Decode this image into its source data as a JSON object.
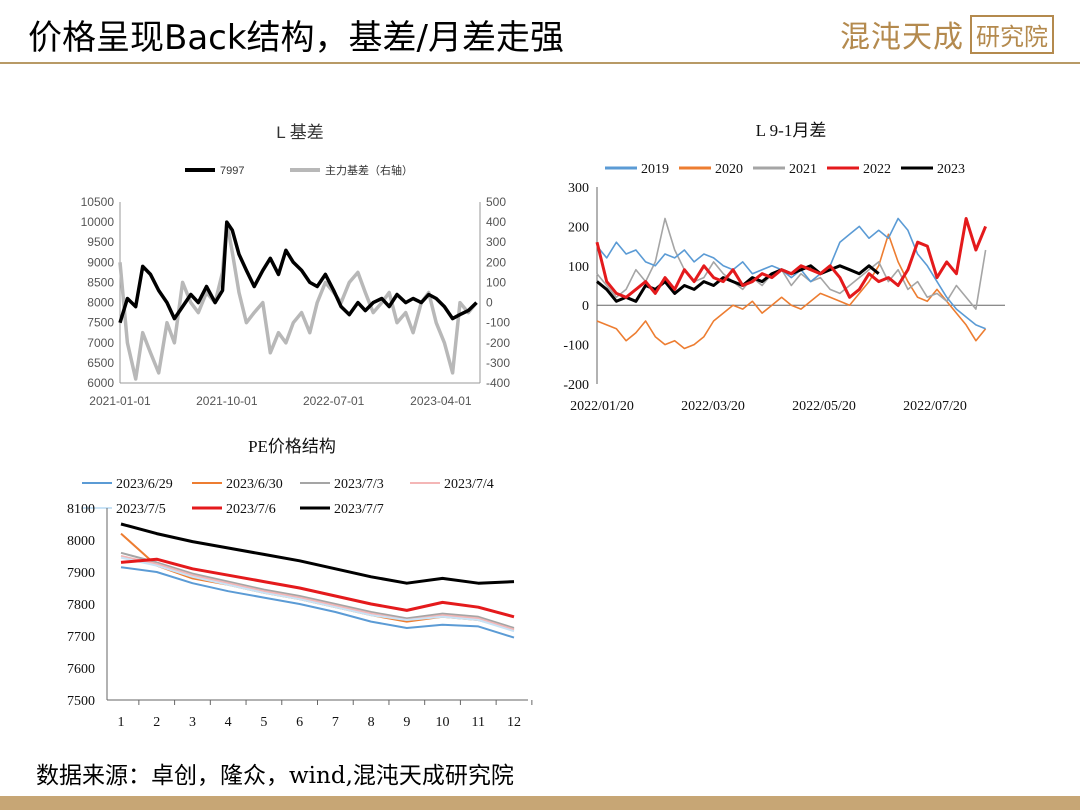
{
  "header": {
    "title": "价格呈现Back结构，基差/月差走强",
    "logo_main": "混沌天成",
    "logo_box": "研究院"
  },
  "footer": {
    "source": "数据来源：卓创，隆众，wind,混沌天成研究院"
  },
  "colors": {
    "accent": "#b89a66"
  },
  "chart_data": [
    {
      "id": "basis",
      "type": "line",
      "title": "L 基差",
      "legend": [
        "7997",
        "主力基差（右轴）"
      ],
      "x_ticks": [
        "2021-01-01",
        "2021-10-01",
        "2022-07-01",
        "2023-04-01"
      ],
      "y_left": {
        "ticks": [
          6000,
          6500,
          7000,
          7500,
          8000,
          8500,
          9000,
          9500,
          10000,
          10500
        ],
        "range": [
          6000,
          10500
        ]
      },
      "y_right": {
        "ticks": [
          -400,
          -300,
          -200,
          -100,
          0,
          100,
          200,
          300,
          400,
          500
        ],
        "range": [
          -400,
          500
        ]
      },
      "series": [
        {
          "name": "7997",
          "color": "#000000",
          "axis": "left",
          "x": [
            "2021-01-01",
            "2021-01-20",
            "2021-02-10",
            "2021-02-28",
            "2021-03-20",
            "2021-04-10",
            "2021-05-01",
            "2021-05-20",
            "2021-06-10",
            "2021-07-01",
            "2021-07-20",
            "2021-08-10",
            "2021-09-01",
            "2021-09-20",
            "2021-10-01",
            "2021-10-15",
            "2021-11-01",
            "2021-11-20",
            "2021-12-10",
            "2022-01-01",
            "2022-01-20",
            "2022-02-10",
            "2022-03-01",
            "2022-03-20",
            "2022-04-10",
            "2022-05-01",
            "2022-05-20",
            "2022-06-10",
            "2022-07-01",
            "2022-07-20",
            "2022-08-10",
            "2022-09-01",
            "2022-09-20",
            "2022-10-10",
            "2022-11-01",
            "2022-11-20",
            "2022-12-10",
            "2023-01-01",
            "2023-01-20",
            "2023-02-10",
            "2023-03-01",
            "2023-03-20",
            "2023-04-10",
            "2023-05-01",
            "2023-05-20",
            "2023-06-10",
            "2023-07-01"
          ],
          "values": [
            7500,
            8100,
            7900,
            8900,
            8700,
            8300,
            8000,
            7600,
            7900,
            8200,
            8000,
            8400,
            8000,
            8300,
            10000,
            9800,
            9200,
            8800,
            8400,
            8800,
            9100,
            8700,
            9300,
            9000,
            8800,
            8500,
            8400,
            8700,
            8300,
            7900,
            7700,
            8000,
            7800,
            8000,
            8100,
            7900,
            8200,
            8000,
            8100,
            8000,
            8200,
            8100,
            7900,
            7600,
            7700,
            7800,
            8000
          ]
        },
        {
          "name": "主力基差（右轴）",
          "color": "#b8b8b8",
          "axis": "right",
          "x": [
            "2021-01-01",
            "2021-01-20",
            "2021-02-10",
            "2021-02-28",
            "2021-03-20",
            "2021-04-10",
            "2021-05-01",
            "2021-05-20",
            "2021-06-10",
            "2021-07-01",
            "2021-07-20",
            "2021-08-10",
            "2021-09-01",
            "2021-09-20",
            "2021-10-01",
            "2021-10-15",
            "2021-11-01",
            "2021-11-20",
            "2021-12-10",
            "2022-01-01",
            "2022-01-20",
            "2022-02-10",
            "2022-03-01",
            "2022-03-20",
            "2022-04-10",
            "2022-05-01",
            "2022-05-20",
            "2022-06-10",
            "2022-07-01",
            "2022-07-20",
            "2022-08-10",
            "2022-09-01",
            "2022-09-20",
            "2022-10-10",
            "2022-11-01",
            "2022-11-20",
            "2022-12-10",
            "2023-01-01",
            "2023-01-20",
            "2023-02-10",
            "2023-03-01",
            "2023-03-20",
            "2023-04-10",
            "2023-05-01",
            "2023-05-20",
            "2023-06-10",
            "2023-07-01"
          ],
          "values": [
            200,
            -200,
            -380,
            -150,
            -250,
            -350,
            -100,
            -200,
            100,
            0,
            -50,
            50,
            0,
            150,
            400,
            250,
            50,
            -100,
            -50,
            0,
            -250,
            -150,
            -200,
            -100,
            -50,
            -150,
            0,
            100,
            50,
            0,
            100,
            150,
            50,
            -50,
            0,
            50,
            -100,
            -50,
            -150,
            0,
            50,
            -100,
            -200,
            -350,
            0,
            -50,
            0
          ]
        }
      ]
    },
    {
      "id": "spread",
      "type": "line",
      "title": "L 9-1月差",
      "legend": [
        "2019",
        "2020",
        "2021",
        "2022",
        "2023"
      ],
      "x_ticks": [
        "2022/01/20",
        "2022/03/20",
        "2022/05/20",
        "2022/07/20"
      ],
      "y": {
        "ticks": [
          -200,
          -100,
          0,
          100,
          200,
          300
        ],
        "range": [
          -200,
          300
        ]
      },
      "series": [
        {
          "name": "2019",
          "color": "#5b9bd5",
          "x": [
            0,
            10,
            20,
            30,
            40,
            50,
            60,
            70,
            80,
            90,
            100,
            110,
            120,
            130,
            140,
            150,
            160,
            170,
            180,
            190,
            200,
            210,
            220,
            230,
            240,
            250,
            260,
            270,
            280,
            290,
            300,
            310,
            320,
            330,
            340,
            350,
            360,
            370,
            380,
            390,
            400
          ],
          "values": [
            150,
            120,
            160,
            130,
            140,
            110,
            100,
            130,
            120,
            140,
            110,
            130,
            120,
            100,
            90,
            110,
            80,
            90,
            100,
            90,
            70,
            90,
            60,
            80,
            100,
            160,
            180,
            200,
            170,
            190,
            170,
            220,
            190,
            130,
            100,
            60,
            20,
            -10,
            -30,
            -50,
            -60
          ]
        },
        {
          "name": "2020",
          "color": "#ed7d31",
          "x": [
            0,
            10,
            20,
            30,
            40,
            50,
            60,
            70,
            80,
            90,
            100,
            110,
            120,
            130,
            140,
            150,
            160,
            170,
            180,
            190,
            200,
            210,
            220,
            230,
            240,
            250,
            260,
            270,
            280,
            290,
            300,
            310,
            320,
            330,
            340,
            350,
            360,
            370,
            380,
            390,
            400
          ],
          "values": [
            -40,
            -50,
            -60,
            -90,
            -70,
            -40,
            -80,
            -100,
            -90,
            -110,
            -100,
            -80,
            -40,
            -20,
            0,
            -10,
            10,
            -20,
            0,
            20,
            0,
            -10,
            10,
            30,
            20,
            10,
            0,
            30,
            60,
            100,
            180,
            110,
            60,
            20,
            10,
            40,
            10,
            -20,
            -50,
            -90,
            -60
          ]
        },
        {
          "name": "2021",
          "color": "#a5a5a5",
          "x": [
            0,
            10,
            20,
            30,
            40,
            50,
            60,
            70,
            80,
            90,
            100,
            110,
            120,
            130,
            140,
            150,
            160,
            170,
            180,
            190,
            200,
            210,
            220,
            230,
            240,
            250,
            260,
            270,
            280,
            290,
            300,
            310,
            320,
            330,
            340,
            350,
            360,
            370,
            380,
            390,
            400
          ],
          "values": [
            80,
            50,
            20,
            40,
            90,
            60,
            110,
            220,
            140,
            90,
            60,
            70,
            110,
            80,
            60,
            40,
            70,
            50,
            80,
            90,
            50,
            80,
            60,
            70,
            40,
            30,
            50,
            70,
            90,
            110,
            60,
            90,
            40,
            60,
            20,
            30,
            10,
            50,
            20,
            -10,
            140
          ]
        },
        {
          "name": "2022",
          "color": "#e41a1c",
          "x": [
            0,
            10,
            20,
            30,
            40,
            50,
            60,
            70,
            80,
            90,
            100,
            110,
            120,
            130,
            140,
            150,
            160,
            170,
            180,
            190,
            200,
            210,
            220,
            230,
            240,
            250,
            260,
            270,
            280,
            290,
            300,
            310,
            320,
            330,
            340,
            350,
            360,
            370,
            380,
            390,
            400
          ],
          "values": [
            160,
            60,
            30,
            20,
            40,
            60,
            30,
            70,
            40,
            90,
            60,
            100,
            70,
            60,
            90,
            50,
            60,
            80,
            70,
            90,
            80,
            100,
            90,
            80,
            100,
            70,
            20,
            40,
            80,
            60,
            70,
            50,
            90,
            160,
            150,
            70,
            110,
            80,
            220,
            140,
            200
          ]
        },
        {
          "name": "2023",
          "color": "#000000",
          "x": [
            0,
            10,
            20,
            30,
            40,
            50,
            60,
            70,
            80,
            90,
            100,
            110,
            120,
            130,
            140,
            150,
            160,
            170,
            180,
            190,
            200,
            210,
            220,
            230,
            240,
            250,
            260,
            270,
            280,
            290
          ],
          "values": [
            60,
            40,
            10,
            20,
            10,
            50,
            40,
            60,
            30,
            50,
            40,
            60,
            50,
            70,
            60,
            50,
            70,
            60,
            80,
            90,
            80,
            90,
            100,
            80,
            90,
            100,
            90,
            80,
            100,
            80
          ]
        }
      ]
    },
    {
      "id": "pe",
      "type": "line",
      "title": "PE价格结构",
      "legend": [
        "2023/6/29",
        "2023/6/30",
        "2023/7/3",
        "2023/7/4",
        "2023/7/5",
        "2023/7/6",
        "2023/7/7"
      ],
      "categories": [
        "1",
        "2",
        "3",
        "4",
        "5",
        "6",
        "7",
        "8",
        "9",
        "10",
        "11",
        "12"
      ],
      "y": {
        "ticks": [
          7500,
          7600,
          7700,
          7800,
          7900,
          8000,
          8100
        ],
        "range": [
          7500,
          8100
        ]
      },
      "series": [
        {
          "name": "2023/6/29",
          "color": "#5b9bd5",
          "values": [
            7915,
            7900,
            7865,
            7840,
            7820,
            7800,
            7775,
            7745,
            7725,
            7735,
            7730,
            7695
          ]
        },
        {
          "name": "2023/6/30",
          "color": "#ed7d31",
          "values": [
            8020,
            7920,
            7880,
            7860,
            7835,
            7815,
            7790,
            7765,
            7745,
            7760,
            7750,
            7720
          ]
        },
        {
          "name": "2023/7/3",
          "color": "#a5a5a5",
          "values": [
            7960,
            7930,
            7895,
            7870,
            7845,
            7825,
            7800,
            7775,
            7755,
            7770,
            7760,
            7725
          ]
        },
        {
          "name": "2023/7/4",
          "color": "#f4b6b6",
          "values": [
            7950,
            7925,
            7890,
            7865,
            7840,
            7820,
            7795,
            7770,
            7750,
            7765,
            7755,
            7720
          ]
        },
        {
          "name": "2023/7/5",
          "color": "#c9e3f6",
          "values": [
            7945,
            7920,
            7885,
            7860,
            7835,
            7815,
            7790,
            7765,
            7750,
            7760,
            7750,
            7715
          ]
        },
        {
          "name": "2023/7/6",
          "color": "#e41a1c",
          "values": [
            7930,
            7940,
            7910,
            7890,
            7870,
            7850,
            7825,
            7800,
            7780,
            7805,
            7790,
            7760
          ]
        },
        {
          "name": "2023/7/7",
          "color": "#000000",
          "values": [
            8050,
            8020,
            7995,
            7975,
            7955,
            7935,
            7910,
            7885,
            7865,
            7880,
            7865,
            7870
          ]
        }
      ]
    }
  ]
}
